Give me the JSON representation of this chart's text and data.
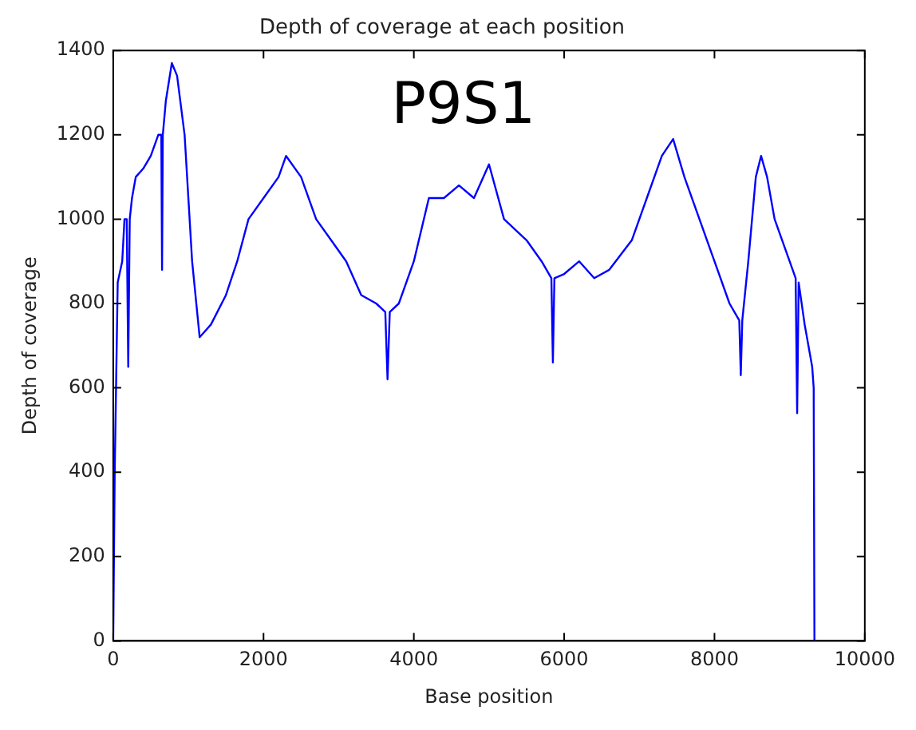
{
  "chart_data": {
    "type": "line",
    "title": "Depth of coverage at each position",
    "xlabel": "Base position",
    "ylabel": "Depth of coverage",
    "annotations": [
      "P9S1"
    ],
    "xlim": [
      0,
      10000
    ],
    "xticks": [
      0,
      2000,
      4000,
      6000,
      8000,
      10000
    ],
    "ylim": [
      0,
      1400
    ],
    "yticks": [
      0,
      200,
      400,
      600,
      800,
      1000,
      1200,
      1400
    ],
    "grid": false,
    "legend": false,
    "marker": "none",
    "line_style": "solid",
    "series": [
      {
        "color": "#0000ff",
        "x": [
          0,
          20,
          60,
          120,
          150,
          180,
          200,
          220,
          250,
          300,
          400,
          500,
          600,
          640,
          650,
          660,
          700,
          780,
          850,
          950,
          1050,
          1150,
          1300,
          1500,
          1650,
          1800,
          2000,
          2200,
          2300,
          2500,
          2700,
          2900,
          3100,
          3300,
          3500,
          3620,
          3650,
          3680,
          3800,
          4000,
          4200,
          4400,
          4600,
          4800,
          5000,
          5200,
          5500,
          5700,
          5830,
          5850,
          5870,
          6000,
          6200,
          6400,
          6600,
          6900,
          7100,
          7300,
          7450,
          7600,
          7800,
          8000,
          8200,
          8330,
          8350,
          8370,
          8450,
          8550,
          8620,
          8700,
          8800,
          9000,
          9080,
          9100,
          9120,
          9200,
          9300,
          9320,
          9330
        ],
        "values": [
          0,
          400,
          850,
          900,
          1000,
          1000,
          650,
          1000,
          1050,
          1100,
          1120,
          1150,
          1200,
          1200,
          880,
          1200,
          1280,
          1370,
          1340,
          1200,
          900,
          720,
          750,
          820,
          900,
          1000,
          1050,
          1100,
          1150,
          1100,
          1000,
          950,
          900,
          820,
          800,
          780,
          620,
          780,
          800,
          900,
          1050,
          1050,
          1080,
          1050,
          1130,
          1000,
          950,
          900,
          860,
          660,
          860,
          870,
          900,
          860,
          880,
          950,
          1050,
          1150,
          1190,
          1100,
          1000,
          900,
          800,
          760,
          630,
          760,
          900,
          1100,
          1150,
          1100,
          1000,
          900,
          860,
          540,
          850,
          750,
          650,
          600,
          0
        ]
      }
    ]
  }
}
